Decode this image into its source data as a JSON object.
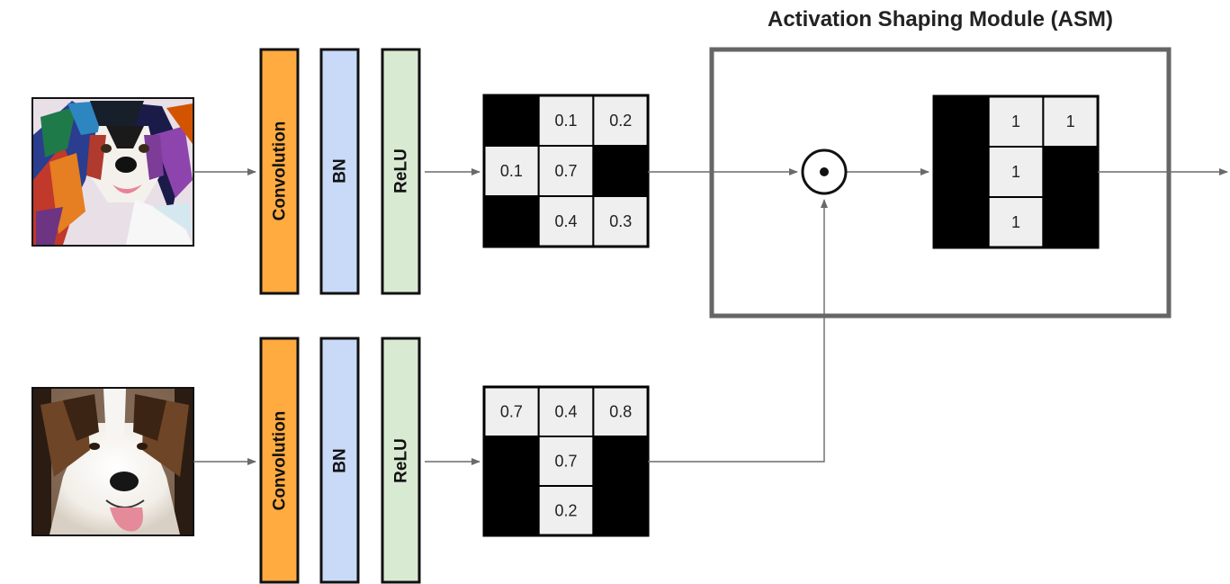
{
  "title": "Activation Shaping Module (ASM)",
  "layers": {
    "conv_label": "Convolution",
    "bn_label": "BN",
    "relu_label": "ReLU"
  },
  "colors": {
    "conv": "#ffab40",
    "bn": "#c9daf8",
    "relu": "#d9ead3",
    "cell_active": "#efefef",
    "cell_zero": "#000000",
    "asm_frame": "#666666",
    "arrow": "#6a6a6a"
  },
  "operator_icon": "hadamard-product-icon",
  "images": {
    "top": "painted-bernese-mountain-dog",
    "bottom": "photo-saint-bernard-dog"
  },
  "matrices": {
    "top_activation": [
      [
        "",
        "0.1",
        "0.2"
      ],
      [
        "0.1",
        "0.7",
        ""
      ],
      [
        "",
        "0.4",
        "0.3"
      ]
    ],
    "bottom_activation": [
      [
        "0.7",
        "0.4",
        "0.8"
      ],
      [
        "",
        "0.7",
        ""
      ],
      [
        "",
        "0.2",
        ""
      ]
    ],
    "binary_mask": [
      [
        "",
        "1",
        "1"
      ],
      [
        "",
        "1",
        ""
      ],
      [
        "",
        "1",
        ""
      ]
    ]
  }
}
